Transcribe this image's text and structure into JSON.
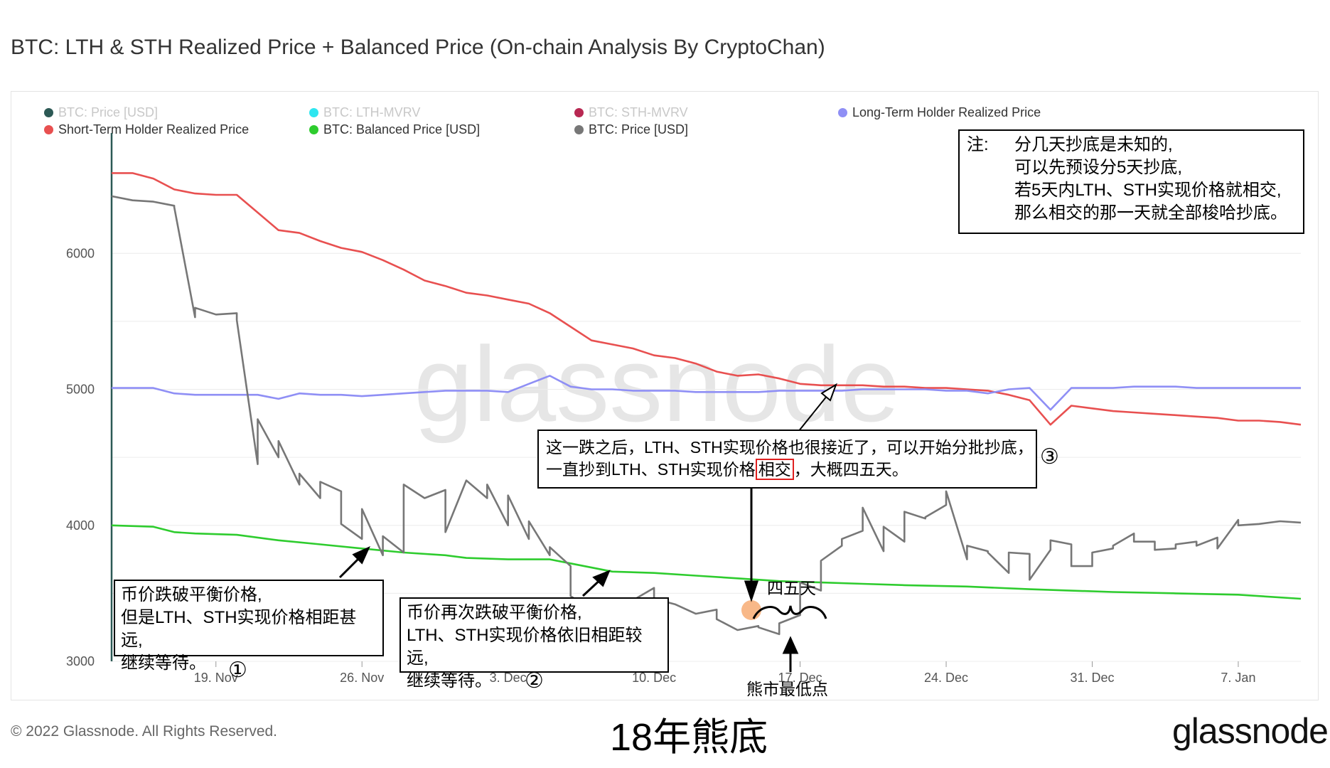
{
  "title": "BTC: LTH & STH Realized Price + Balanced Price (On-chain Analysis By CryptoChan)",
  "legend": [
    {
      "label": "BTC: Price [USD]",
      "color": "#2c5955",
      "active": false
    },
    {
      "label": "BTC: LTH-MVRV",
      "color": "#2ee6f0",
      "active": false
    },
    {
      "label": "BTC: STH-MVRV",
      "color": "#b82852",
      "active": false
    },
    {
      "label": "Long-Term Holder Realized Price",
      "color": "#8f8ff5",
      "active": true
    },
    {
      "label": "Short-Term Holder Realized Price",
      "color": "#e85050",
      "active": true
    },
    {
      "label": "BTC: Balanced Price [USD]",
      "color": "#2ecc2e",
      "active": true
    },
    {
      "label": "BTC: Price [USD]",
      "color": "#777777",
      "active": true
    }
  ],
  "watermark": "glassnode",
  "note_box": {
    "prefix": "注:",
    "lines": [
      "分几天抄底是未知的,",
      "可以先预设分5天抄底,",
      "若5天内LTH、STH实现价格就相交,",
      "那么相交的那一天就全部梭哈抄底。"
    ]
  },
  "annotations": {
    "box1": [
      "币价跌破平衡价格,",
      "但是LTH、STH实现价格相距甚远,",
      "继续等待。"
    ],
    "box2": [
      "币价再次跌破平衡价格,",
      "LTH、STH实现价格依旧相距较远,",
      "继续等待。"
    ],
    "box3_line1": "这一跌之后，LTH、STH实现价格也很接近了，可以开始分批抄底，",
    "box3_line2_a": "一直抄到LTH、STH实现价格",
    "box3_highlight": "相交",
    "box3_line2_b": "，大概四五天。",
    "four_five_days": "四五天",
    "bear_bottom": "熊市最低点",
    "num1": "①",
    "num2": "②",
    "num3": "③"
  },
  "footer": {
    "copyright": "© 2022 Glassnode. All Rights Reserved.",
    "caption": "18年熊底",
    "logo": "glassnode"
  },
  "chart_data": {
    "type": "line",
    "x_ticks": [
      "19. Nov",
      "26. Nov",
      "3. Dec",
      "10. Dec",
      "17. Dec",
      "24. Dec",
      "31. Dec",
      "7. Jan"
    ],
    "y_ticks": [
      3000,
      4000,
      5000,
      6000
    ],
    "ylim": [
      3000,
      7000
    ],
    "xlim": [
      "2018-11-14",
      "2019-01-10"
    ],
    "series": [
      {
        "name": "Short-Term Holder Realized Price",
        "color": "#e85050",
        "x": [
          "2018-11-14",
          "2018-11-15",
          "2018-11-16",
          "2018-11-17",
          "2018-11-18",
          "2018-11-19",
          "2018-11-20",
          "2018-11-21",
          "2018-11-22",
          "2018-11-23",
          "2018-11-24",
          "2018-11-25",
          "2018-11-26",
          "2018-11-27",
          "2018-11-28",
          "2018-11-29",
          "2018-11-30",
          "2018-12-01",
          "2018-12-02",
          "2018-12-03",
          "2018-12-04",
          "2018-12-05",
          "2018-12-06",
          "2018-12-07",
          "2018-12-08",
          "2018-12-09",
          "2018-12-10",
          "2018-12-11",
          "2018-12-12",
          "2018-12-13",
          "2018-12-14",
          "2018-12-15",
          "2018-12-16",
          "2018-12-17",
          "2018-12-18",
          "2018-12-19",
          "2018-12-20",
          "2018-12-21",
          "2018-12-22",
          "2018-12-23",
          "2018-12-24",
          "2018-12-25",
          "2018-12-26",
          "2018-12-27",
          "2018-12-28",
          "2018-12-29",
          "2018-12-30",
          "2018-12-31",
          "2019-01-01",
          "2019-01-02",
          "2019-01-03",
          "2019-01-04",
          "2019-01-05",
          "2019-01-06",
          "2019-01-07",
          "2019-01-08",
          "2019-01-09",
          "2019-01-10"
        ],
        "values": [
          6590,
          6590,
          6550,
          6470,
          6440,
          6430,
          6430,
          6300,
          6170,
          6150,
          6090,
          6040,
          6010,
          5950,
          5880,
          5800,
          5760,
          5710,
          5690,
          5660,
          5630,
          5560,
          5460,
          5360,
          5330,
          5300,
          5250,
          5230,
          5190,
          5130,
          5100,
          5110,
          5080,
          5040,
          5030,
          5030,
          5030,
          5020,
          5020,
          5010,
          5010,
          5000,
          4990,
          4960,
          4920,
          4740,
          4880,
          4860,
          4840,
          4830,
          4820,
          4810,
          4800,
          4790,
          4770,
          4770,
          4760,
          4740
        ]
      },
      {
        "name": "Long-Term Holder Realized Price",
        "color": "#8f8ff5",
        "x": [
          "2018-11-14",
          "2018-11-15",
          "2018-11-16",
          "2018-11-17",
          "2018-11-18",
          "2018-11-19",
          "2018-11-20",
          "2018-11-21",
          "2018-11-22",
          "2018-11-23",
          "2018-11-24",
          "2018-11-25",
          "2018-11-26",
          "2018-11-27",
          "2018-11-28",
          "2018-11-29",
          "2018-11-30",
          "2018-12-01",
          "2018-12-02",
          "2018-12-03",
          "2018-12-04",
          "2018-12-05",
          "2018-12-06",
          "2018-12-07",
          "2018-12-08",
          "2018-12-09",
          "2018-12-10",
          "2018-12-11",
          "2018-12-12",
          "2018-12-13",
          "2018-12-14",
          "2018-12-15",
          "2018-12-16",
          "2018-12-17",
          "2018-12-18",
          "2018-12-19",
          "2018-12-20",
          "2018-12-21",
          "2018-12-22",
          "2018-12-23",
          "2018-12-24",
          "2018-12-25",
          "2018-12-26",
          "2018-12-27",
          "2018-12-28",
          "2018-12-29",
          "2018-12-30",
          "2018-12-31",
          "2019-01-01",
          "2019-01-02",
          "2019-01-03",
          "2019-01-04",
          "2019-01-05",
          "2019-01-06",
          "2019-01-07",
          "2019-01-08",
          "2019-01-09",
          "2019-01-10"
        ],
        "values": [
          5010,
          5010,
          5010,
          4970,
          4960,
          4960,
          4960,
          4960,
          4930,
          4970,
          4960,
          4960,
          4950,
          4960,
          4970,
          4980,
          4990,
          4990,
          4990,
          4980,
          5040,
          5100,
          5020,
          5000,
          5000,
          4990,
          4990,
          4990,
          4980,
          4980,
          4980,
          4980,
          4990,
          4990,
          4990,
          4990,
          5000,
          5000,
          5000,
          5000,
          4990,
          4990,
          4970,
          5000,
          5010,
          4850,
          5010,
          5010,
          5010,
          5020,
          5020,
          5020,
          5010,
          5010,
          5010,
          5010,
          5010,
          5010
        ]
      },
      {
        "name": "BTC: Balanced Price [USD]",
        "color": "#2ecc2e",
        "x": [
          "2018-11-14",
          "2018-11-16",
          "2018-11-17",
          "2018-11-18",
          "2018-11-20",
          "2018-11-22",
          "2018-11-24",
          "2018-11-26",
          "2018-11-28",
          "2018-11-30",
          "2018-12-01",
          "2018-12-03",
          "2018-12-05",
          "2018-12-06",
          "2018-12-08",
          "2018-12-10",
          "2018-12-12",
          "2018-12-14",
          "2018-12-16",
          "2018-12-18",
          "2018-12-20",
          "2018-12-22",
          "2018-12-25",
          "2018-12-28",
          "2019-01-01",
          "2019-01-04",
          "2019-01-07",
          "2019-01-10"
        ],
        "values": [
          4000,
          3990,
          3950,
          3940,
          3930,
          3890,
          3860,
          3830,
          3800,
          3780,
          3760,
          3750,
          3750,
          3720,
          3660,
          3650,
          3630,
          3610,
          3590,
          3580,
          3570,
          3560,
          3550,
          3530,
          3510,
          3500,
          3490,
          3460
        ]
      },
      {
        "name": "BTC: Price [USD]",
        "color": "#777777",
        "x": [
          "2018-11-14",
          "2018-11-15",
          "2018-11-16",
          "2018-11-17",
          "2018-11-17",
          "2018-11-18",
          "2018-11-18",
          "2018-11-19",
          "2018-11-20",
          "2018-11-20",
          "2018-11-21",
          "2018-11-21",
          "2018-11-22",
          "2018-11-22",
          "2018-11-23",
          "2018-11-23",
          "2018-11-24",
          "2018-11-24",
          "2018-11-25",
          "2018-11-25",
          "2018-11-26",
          "2018-11-26",
          "2018-11-27",
          "2018-11-27",
          "2018-11-28",
          "2018-11-28",
          "2018-11-29",
          "2018-11-30",
          "2018-11-30",
          "2018-12-01",
          "2018-12-02",
          "2018-12-02",
          "2018-12-03",
          "2018-12-03",
          "2018-12-04",
          "2018-12-04",
          "2018-12-05",
          "2018-12-05",
          "2018-12-06",
          "2018-12-06",
          "2018-12-07",
          "2018-12-07",
          "2018-12-08",
          "2018-12-08",
          "2018-12-09",
          "2018-12-10",
          "2018-12-10",
          "2018-12-11",
          "2018-12-12",
          "2018-12-13",
          "2018-12-13",
          "2018-12-14",
          "2018-12-15",
          "2018-12-15",
          "2018-12-16",
          "2018-12-16",
          "2018-12-17",
          "2018-12-17",
          "2018-12-18",
          "2018-12-18",
          "2018-12-19",
          "2018-12-19",
          "2018-12-20",
          "2018-12-20",
          "2018-12-21",
          "2018-12-21",
          "2018-12-22",
          "2018-12-22",
          "2018-12-23",
          "2018-12-23",
          "2018-12-24",
          "2018-12-24",
          "2018-12-25",
          "2018-12-25",
          "2018-12-26",
          "2018-12-26",
          "2018-12-27",
          "2018-12-27",
          "2018-12-28",
          "2018-12-28",
          "2018-12-29",
          "2018-12-29",
          "2018-12-30",
          "2018-12-30",
          "2018-12-31",
          "2018-12-31",
          "2019-01-01",
          "2019-01-01",
          "2019-01-02",
          "2019-01-02",
          "2019-01-03",
          "2019-01-03",
          "2019-01-04",
          "2019-01-04",
          "2019-01-05",
          "2019-01-05",
          "2019-01-06",
          "2019-01-06",
          "2019-01-07",
          "2019-01-07",
          "2019-01-08",
          "2019-01-09",
          "2019-01-10"
        ],
        "values": [
          6420,
          6390,
          6380,
          6350,
          6340,
          5530,
          5600,
          5550,
          5560,
          5510,
          4450,
          4780,
          4500,
          4620,
          4300,
          4380,
          4200,
          4320,
          4250,
          4010,
          3900,
          4120,
          3780,
          3920,
          3800,
          4300,
          4200,
          4260,
          3950,
          4330,
          4200,
          4300,
          4000,
          4220,
          3900,
          4030,
          3780,
          3840,
          3700,
          3480,
          3380,
          3430,
          3350,
          3430,
          3450,
          3540,
          3460,
          3420,
          3350,
          3380,
          3310,
          3230,
          3260,
          3250,
          3200,
          3280,
          3340,
          3580,
          3520,
          3740,
          3850,
          3900,
          3960,
          4130,
          3810,
          3990,
          3880,
          4100,
          4050,
          4060,
          4150,
          4250,
          3750,
          3850,
          3810,
          3800,
          3650,
          3800,
          3790,
          3600,
          3820,
          3890,
          3860,
          3700,
          3700,
          3800,
          3830,
          3850,
          3940,
          3880,
          3880,
          3820,
          3830,
          3860,
          3880,
          3850,
          3910,
          3830,
          4040,
          4000,
          4010,
          4030,
          4020
        ]
      }
    ]
  }
}
